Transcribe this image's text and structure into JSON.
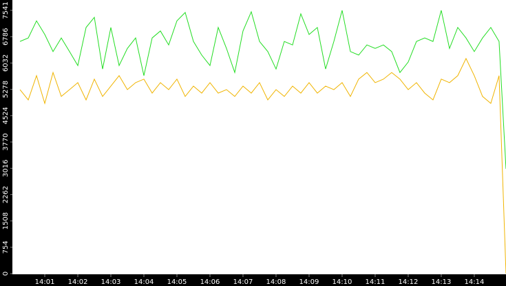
{
  "chart_data": {
    "type": "line",
    "x": [
      0.25,
      0.5,
      0.75,
      1,
      1.25,
      1.5,
      1.75,
      2,
      2.25,
      2.5,
      2.75,
      3,
      3.25,
      3.5,
      3.75,
      4,
      4.25,
      4.5,
      4.75,
      5,
      5.25,
      5.5,
      5.75,
      6,
      6.25,
      6.5,
      6.75,
      7,
      7.25,
      7.5,
      7.75,
      8,
      8.25,
      8.5,
      8.75,
      9,
      9.25,
      9.5,
      9.75,
      10,
      10.25,
      10.5,
      10.75,
      11,
      11.25,
      11.5,
      11.75,
      12,
      12.25,
      12.5,
      12.75,
      13,
      13.25,
      13.5,
      13.75,
      14,
      14.25,
      14.5,
      14.75,
      14.96
    ],
    "series": [
      {
        "color": "#22dd22",
        "values": [
          6650,
          6750,
          7240,
          6850,
          6360,
          6750,
          6360,
          5960,
          7050,
          7340,
          5860,
          7050,
          5960,
          6450,
          6750,
          5670,
          6750,
          6950,
          6550,
          7240,
          7480,
          6650,
          6260,
          5960,
          7050,
          6450,
          5760,
          6950,
          7500,
          6650,
          6360,
          5860,
          6650,
          6550,
          7440,
          6850,
          7050,
          5860,
          6650,
          7540,
          6360,
          6260,
          6550,
          6450,
          6550,
          6360,
          5760,
          6060,
          6650,
          6750,
          6650,
          7540,
          6450,
          7050,
          6750,
          6360,
          6750,
          7050,
          6650,
          3000
        ]
      },
      {
        "color": "#f0b400",
        "values": [
          5270,
          4975,
          5670,
          4875,
          5760,
          5075,
          5270,
          5470,
          4975,
          5570,
          5075,
          5370,
          5670,
          5270,
          5470,
          5570,
          5170,
          5470,
          5270,
          5570,
          5075,
          5370,
          5170,
          5470,
          5170,
          5270,
          5075,
          5370,
          5170,
          5470,
          4975,
          5270,
          5075,
          5370,
          5170,
          5470,
          5170,
          5370,
          5270,
          5470,
          5075,
          5570,
          5760,
          5470,
          5570,
          5760,
          5570,
          5270,
          5470,
          5170,
          4975,
          5570,
          5470,
          5670,
          6160,
          5670,
          5075,
          4875,
          5670,
          0
        ]
      }
    ],
    "xlim": [
      0.02,
      14.96
    ],
    "xticks": [
      {
        "value": 1,
        "label": "14:01"
      },
      {
        "value": 2,
        "label": "14:02"
      },
      {
        "value": 3,
        "label": "14:03"
      },
      {
        "value": 4,
        "label": "14:04"
      },
      {
        "value": 5,
        "label": "14:05"
      },
      {
        "value": 6,
        "label": "14:06"
      },
      {
        "value": 7,
        "label": "14:07"
      },
      {
        "value": 8,
        "label": "14:08"
      },
      {
        "value": 9,
        "label": "14:09"
      },
      {
        "value": 10,
        "label": "14:10"
      },
      {
        "value": 11,
        "label": "14:11"
      },
      {
        "value": 12,
        "label": "14:12"
      },
      {
        "value": 13,
        "label": "14:13"
      },
      {
        "value": 14,
        "label": "14:14"
      }
    ],
    "ylim": [
      0,
      7541
    ],
    "yticks": [
      0,
      754,
      1508,
      2262,
      3016,
      3770,
      4524,
      5278,
      6032,
      6786,
      7541
    ],
    "grid": false
  }
}
